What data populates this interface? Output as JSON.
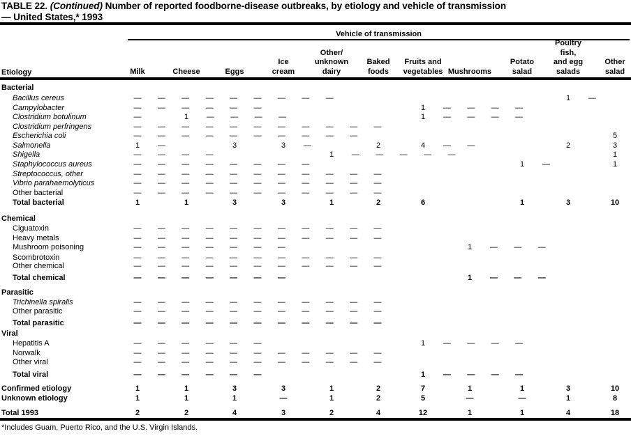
{
  "title": {
    "prefix": "TABLE 22.",
    "continued": "(Continued)",
    "rest": "Number of reported foodborne-disease outbreaks, by etiology and vehicle of transmission",
    "line2": "— United States,* 1993"
  },
  "footnote": "*Includes Guam, Puerto Rico, and the U.S. Virgin Islands.",
  "table": {
    "spanner": "Vehicle of transmission",
    "row_header": "Etiology",
    "columns": [
      {
        "id": "milk",
        "lines": [
          "Milk"
        ]
      },
      {
        "id": "cheese",
        "lines": [
          "Cheese"
        ]
      },
      {
        "id": "eggs",
        "lines": [
          "Eggs"
        ]
      },
      {
        "id": "ice-cream",
        "lines": [
          "Ice",
          "cream"
        ]
      },
      {
        "id": "other-unknown-dairy",
        "lines": [
          "Other/",
          "unknown",
          "dairy"
        ]
      },
      {
        "id": "baked-foods",
        "lines": [
          "Baked",
          "foods"
        ]
      },
      {
        "id": "fruits-and-vegetables",
        "lines": [
          "Fruits and",
          "vegetables"
        ]
      },
      {
        "id": "mushrooms",
        "lines": [
          "Mushrooms"
        ]
      },
      {
        "id": "potato-salad",
        "lines": [
          "Potato",
          "salad"
        ]
      },
      {
        "id": "poultry-fish-egg-salads",
        "lines": [
          "Poultry",
          "fish,",
          "and egg",
          "salads"
        ]
      },
      {
        "id": "other-salad",
        "lines": [
          "Other",
          "salad"
        ]
      }
    ],
    "rows": [
      {
        "type": "section",
        "label": "Bacterial"
      },
      {
        "type": "item",
        "italic": true,
        "label": "Bacillus cereus",
        "cells": [
          "—",
          "—",
          "—",
          "—",
          "—",
          "—",
          "—",
          "—",
          "—",
          "1",
          "—"
        ]
      },
      {
        "type": "item",
        "italic": true,
        "label": "Campylobacter",
        "cells": [
          "—",
          "—",
          "—",
          "—",
          "—",
          "—",
          "1",
          "—",
          "—",
          "—",
          "—"
        ]
      },
      {
        "type": "item",
        "italic": true,
        "label": "Clostridium botulinum",
        "cells": [
          "—",
          "1",
          "—",
          "—",
          "—",
          "—",
          "1",
          "—",
          "—",
          "—",
          "—"
        ]
      },
      {
        "type": "item",
        "italic": true,
        "label": "Clostridium perfringens",
        "cells": [
          "—",
          "—",
          "—",
          "—",
          "—",
          "—",
          "—",
          "—",
          "—",
          "—",
          "—"
        ]
      },
      {
        "type": "item",
        "italic": true,
        "label": "Escherichia coli",
        "cells": [
          "—",
          "—",
          "—",
          "—",
          "—",
          "—",
          "—",
          "—",
          "—",
          "—",
          "5"
        ]
      },
      {
        "type": "item",
        "italic": true,
        "label": "Salmonella",
        "cells": [
          "1",
          "—",
          "3",
          "3",
          "—",
          "2",
          "4",
          "—",
          "—",
          "2",
          "3"
        ]
      },
      {
        "type": "item",
        "italic": true,
        "label": "Shigella",
        "cells": [
          "—",
          "—",
          "—",
          "—",
          "1",
          "—",
          "—",
          "—",
          "—",
          "—",
          "1"
        ]
      },
      {
        "type": "item",
        "italic": true,
        "label": "Staphylococcus aureus",
        "cells": [
          "—",
          "—",
          "—",
          "—",
          "—",
          "—",
          "—",
          "—",
          "1",
          "—",
          "1"
        ]
      },
      {
        "type": "item",
        "italic": true,
        "label": "Streptococcus, other",
        "cells": [
          "—",
          "—",
          "—",
          "—",
          "—",
          "—",
          "—",
          "—",
          "—",
          "—",
          "—"
        ]
      },
      {
        "type": "item",
        "italic": true,
        "label": "Vibrio parahaemolyticus",
        "cells": [
          "—",
          "—",
          "—",
          "—",
          "—",
          "—",
          "—",
          "—",
          "—",
          "—",
          "—"
        ]
      },
      {
        "type": "item",
        "italic": false,
        "label": "Other bacterial",
        "cells": [
          "—",
          "—",
          "—",
          "—",
          "—",
          "—",
          "—",
          "—",
          "—",
          "—",
          "—"
        ]
      },
      {
        "type": "total",
        "label": "Total bacterial",
        "cells": [
          "1",
          "1",
          "3",
          "3",
          "1",
          "2",
          "6",
          "",
          "1",
          "3",
          "10"
        ]
      },
      {
        "type": "section",
        "label": "Chemical"
      },
      {
        "type": "item",
        "italic": false,
        "label": "Ciguatoxin",
        "cells": [
          "—",
          "—",
          "—",
          "—",
          "—",
          "—",
          "—",
          "—",
          "—",
          "—",
          "—"
        ]
      },
      {
        "type": "item",
        "italic": false,
        "label": "Heavy metals",
        "cells": [
          "—",
          "—",
          "—",
          "—",
          "—",
          "—",
          "—",
          "—",
          "—",
          "—",
          "—"
        ]
      },
      {
        "type": "item",
        "italic": false,
        "label": "Mushroom poisoning",
        "cells": [
          "—",
          "—",
          "—",
          "—",
          "—",
          "—",
          "—",
          "1",
          "—",
          "—",
          "—"
        ]
      },
      {
        "type": "item",
        "italic": false,
        "label": "Scombrotoxin",
        "cells": [
          "—",
          "—",
          "—",
          "—",
          "—",
          "—",
          "—",
          "—",
          "—",
          "—",
          "—"
        ]
      },
      {
        "type": "item",
        "italic": false,
        "label": "Other chemical",
        "cells": [
          "—",
          "—",
          "—",
          "—",
          "—",
          "—",
          "—",
          "—",
          "—",
          "—",
          "—"
        ]
      },
      {
        "type": "total",
        "label": "Total chemical",
        "cells": [
          "—",
          "—",
          "—",
          "—",
          "—",
          "—",
          "—",
          "1",
          "—",
          "—",
          "—"
        ]
      },
      {
        "type": "section",
        "label": "Parasitic"
      },
      {
        "type": "item",
        "italic": true,
        "label": "Trichinella spiralis",
        "cells": [
          "—",
          "—",
          "—",
          "—",
          "—",
          "—",
          "—",
          "—",
          "—",
          "—",
          "—"
        ]
      },
      {
        "type": "item",
        "italic": false,
        "label": "Other parasitic",
        "cells": [
          "—",
          "—",
          "—",
          "—",
          "—",
          "—",
          "—",
          "—",
          "—",
          "—",
          "—"
        ]
      },
      {
        "type": "total",
        "label": "Total parasitic",
        "cells": [
          "—",
          "—",
          "—",
          "—",
          "—",
          "—",
          "—",
          "—",
          "—",
          "—",
          "—"
        ]
      },
      {
        "type": "section",
        "label": "Viral"
      },
      {
        "type": "item",
        "italic": false,
        "label": "Hepatitis A",
        "cells": [
          "—",
          "—",
          "—",
          "—",
          "—",
          "—",
          "1",
          "—",
          "—",
          "—",
          "—"
        ]
      },
      {
        "type": "item",
        "italic": false,
        "label": "Norwalk",
        "cells": [
          "—",
          "—",
          "—",
          "—",
          "—",
          "—",
          "—",
          "—",
          "—",
          "—",
          "—"
        ]
      },
      {
        "type": "item",
        "italic": false,
        "label": "Other viral",
        "cells": [
          "—",
          "—",
          "—",
          "—",
          "—",
          "—",
          "—",
          "—",
          "—",
          "—",
          "—"
        ]
      },
      {
        "type": "total",
        "label": "Total viral",
        "cells": [
          "—",
          "—",
          "—",
          "—",
          "—",
          "—",
          "1",
          "—",
          "—",
          "—",
          "—"
        ]
      },
      {
        "type": "summary",
        "label": "Confirmed etiology",
        "cells": [
          "1",
          "1",
          "3",
          "3",
          "1",
          "2",
          "7",
          "1",
          "1",
          "3",
          "10"
        ]
      },
      {
        "type": "summary",
        "label": "Unknown etiology",
        "cells": [
          "1",
          "1",
          "1",
          "—",
          "1",
          "2",
          "5",
          "—",
          "—",
          "1",
          "8"
        ]
      },
      {
        "type": "summary",
        "label": "Total 1993",
        "cells": [
          "2",
          "2",
          "4",
          "3",
          "2",
          "4",
          "12",
          "1",
          "1",
          "4",
          "18"
        ]
      }
    ]
  }
}
